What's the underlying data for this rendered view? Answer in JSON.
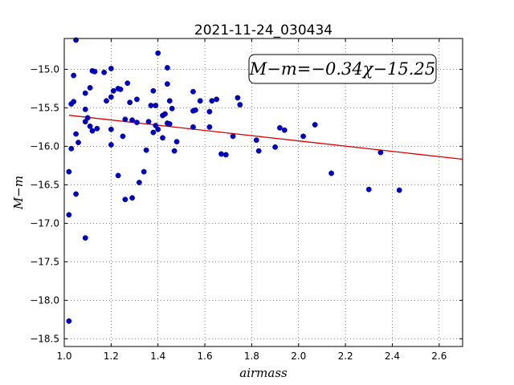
{
  "chart_data": {
    "type": "scatter",
    "title": "2021-11-24_030434",
    "xlabel": "airmass",
    "ylabel": "M−m",
    "xlim": [
      1.0,
      2.7
    ],
    "ylim": [
      -18.6,
      -14.6
    ],
    "y_inverted": true,
    "grid": true,
    "grid_style": "dotted",
    "x_ticks": [
      1.0,
      1.2,
      1.4,
      1.6,
      1.8,
      2.0,
      2.2,
      2.4,
      2.6
    ],
    "x_tick_labels": [
      "1.0",
      "1.2",
      "1.4",
      "1.6",
      "1.8",
      "2.0",
      "2.2",
      "2.4",
      "2.6"
    ],
    "y_ticks": [
      -15.0,
      -15.5,
      -16.0,
      -16.5,
      -17.0,
      -17.5,
      -18.0,
      -18.5
    ],
    "y_tick_labels": [
      "−15.0",
      "−15.5",
      "−16.0",
      "−16.5",
      "−17.0",
      "−17.5",
      "−18.0",
      "−18.5"
    ],
    "annotation": "M−m=−0.34χ−15.25",
    "fit": {
      "slope": -0.34,
      "intercept": -15.25,
      "x_range": [
        1.02,
        2.7
      ],
      "color": "#dd0000"
    },
    "point_color": "#0000cc",
    "points": [
      {
        "x": 1.05,
        "y": -14.62
      },
      {
        "x": 1.04,
        "y": -15.08
      },
      {
        "x": 1.03,
        "y": -15.45
      },
      {
        "x": 1.04,
        "y": -15.42
      },
      {
        "x": 1.05,
        "y": -15.84
      },
      {
        "x": 1.03,
        "y": -16.03
      },
      {
        "x": 1.06,
        "y": -15.95
      },
      {
        "x": 1.02,
        "y": -16.33
      },
      {
        "x": 1.05,
        "y": -16.62
      },
      {
        "x": 1.02,
        "y": -16.89
      },
      {
        "x": 1.02,
        "y": -18.27
      },
      {
        "x": 1.09,
        "y": -17.19
      },
      {
        "x": 1.09,
        "y": -15.31
      },
      {
        "x": 1.11,
        "y": -15.24
      },
      {
        "x": 1.12,
        "y": -15.02
      },
      {
        "x": 1.13,
        "y": -15.03
      },
      {
        "x": 1.09,
        "y": -15.52
      },
      {
        "x": 1.1,
        "y": -15.63
      },
      {
        "x": 1.09,
        "y": -15.68
      },
      {
        "x": 1.11,
        "y": -15.74
      },
      {
        "x": 1.12,
        "y": -15.8
      },
      {
        "x": 1.14,
        "y": -15.77
      },
      {
        "x": 1.17,
        "y": -15.04
      },
      {
        "x": 1.2,
        "y": -14.99
      },
      {
        "x": 1.18,
        "y": -15.41
      },
      {
        "x": 1.2,
        "y": -15.36
      },
      {
        "x": 1.21,
        "y": -15.28
      },
      {
        "x": 1.23,
        "y": -15.25
      },
      {
        "x": 1.24,
        "y": -15.26
      },
      {
        "x": 1.2,
        "y": -15.78
      },
      {
        "x": 1.2,
        "y": -15.98
      },
      {
        "x": 1.23,
        "y": -16.38
      },
      {
        "x": 1.25,
        "y": -15.87
      },
      {
        "x": 1.26,
        "y": -15.65
      },
      {
        "x": 1.27,
        "y": -15.18
      },
      {
        "x": 1.28,
        "y": -15.43
      },
      {
        "x": 1.29,
        "y": -15.66
      },
      {
        "x": 1.26,
        "y": -16.69
      },
      {
        "x": 1.29,
        "y": -16.67
      },
      {
        "x": 1.31,
        "y": -15.39
      },
      {
        "x": 1.31,
        "y": -15.69
      },
      {
        "x": 1.32,
        "y": -16.47
      },
      {
        "x": 1.34,
        "y": -16.33
      },
      {
        "x": 1.35,
        "y": -16.05
      },
      {
        "x": 1.36,
        "y": -15.68
      },
      {
        "x": 1.37,
        "y": -15.47
      },
      {
        "x": 1.38,
        "y": -15.28
      },
      {
        "x": 1.39,
        "y": -15.47
      },
      {
        "x": 1.39,
        "y": -15.73
      },
      {
        "x": 1.38,
        "y": -15.82
      },
      {
        "x": 1.4,
        "y": -15.78
      },
      {
        "x": 1.4,
        "y": -14.79
      },
      {
        "x": 1.42,
        "y": -15.6
      },
      {
        "x": 1.43,
        "y": -15.58
      },
      {
        "x": 1.44,
        "y": -14.98
      },
      {
        "x": 1.44,
        "y": -15.19
      },
      {
        "x": 1.45,
        "y": -15.41
      },
      {
        "x": 1.46,
        "y": -15.51
      },
      {
        "x": 1.44,
        "y": -15.7
      },
      {
        "x": 1.45,
        "y": -15.71
      },
      {
        "x": 1.42,
        "y": -15.89
      },
      {
        "x": 1.48,
        "y": -15.94
      },
      {
        "x": 1.47,
        "y": -16.06
      },
      {
        "x": 1.55,
        "y": -15.29
      },
      {
        "x": 1.56,
        "y": -15.53
      },
      {
        "x": 1.55,
        "y": -15.54
      },
      {
        "x": 1.55,
        "y": -15.75
      },
      {
        "x": 1.58,
        "y": -15.41
      },
      {
        "x": 1.62,
        "y": -15.55
      },
      {
        "x": 1.62,
        "y": -15.75
      },
      {
        "x": 1.63,
        "y": -15.41
      },
      {
        "x": 1.65,
        "y": -15.39
      },
      {
        "x": 1.67,
        "y": -16.1
      },
      {
        "x": 1.69,
        "y": -16.11
      },
      {
        "x": 1.72,
        "y": -15.87
      },
      {
        "x": 1.74,
        "y": -15.37
      },
      {
        "x": 1.75,
        "y": -15.46
      },
      {
        "x": 1.82,
        "y": -15.92
      },
      {
        "x": 1.83,
        "y": -16.06
      },
      {
        "x": 1.9,
        "y": -16.01
      },
      {
        "x": 1.92,
        "y": -15.76
      },
      {
        "x": 1.94,
        "y": -15.79
      },
      {
        "x": 2.02,
        "y": -15.87
      },
      {
        "x": 2.07,
        "y": -15.72
      },
      {
        "x": 2.14,
        "y": -16.35
      },
      {
        "x": 2.3,
        "y": -16.56
      },
      {
        "x": 2.35,
        "y": -16.08
      },
      {
        "x": 2.43,
        "y": -16.57
      }
    ]
  }
}
